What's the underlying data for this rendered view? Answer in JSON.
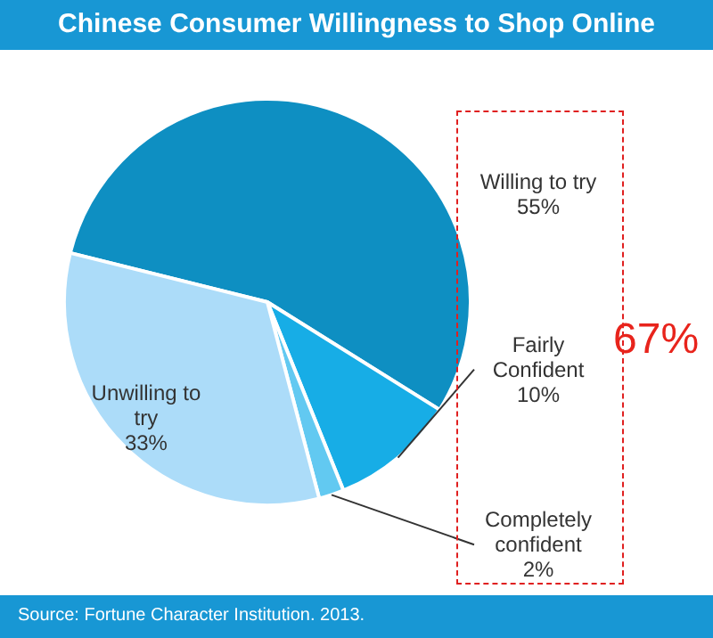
{
  "chart_data": {
    "type": "pie",
    "title": "Chinese Consumer Willingness to Shop Online",
    "categories": [
      "Willing to try",
      "Fairly Confident",
      "Completely confident",
      "Unwilling to try"
    ],
    "values": [
      55,
      10,
      2,
      33
    ],
    "value_labels": [
      "55%",
      "10%",
      "2%",
      "33%"
    ],
    "colors": [
      "#0e8fc2",
      "#17ade6",
      "#62c9f1",
      "#acdcf9"
    ],
    "legend": false,
    "annotations": [
      "67%",
      "Source: Fortune Character Institution. 2013."
    ]
  }
}
